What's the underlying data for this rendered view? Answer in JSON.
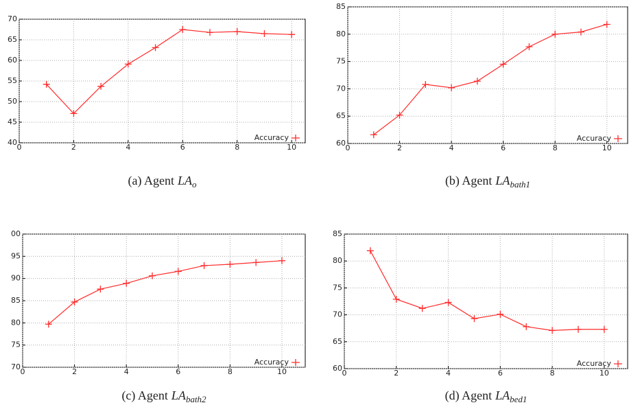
{
  "chart_data": [
    {
      "type": "line",
      "caption": "(a) Agent",
      "caption_math": "LA",
      "caption_sub": "o",
      "x": [
        1,
        2,
        3,
        4,
        5,
        6,
        7,
        8,
        9,
        10
      ],
      "series": [
        {
          "name": "Accuracy",
          "color": "#ff2a2a",
          "values": [
            54.2,
            47.1,
            53.7,
            59.1,
            63.1,
            67.5,
            66.8,
            67.0,
            66.5,
            66.3
          ]
        }
      ],
      "xlim": [
        0,
        10.5
      ],
      "xticks": [
        0,
        2,
        4,
        6,
        8,
        10
      ],
      "ylim": [
        40,
        70
      ],
      "yticks": [
        40,
        45,
        50,
        55,
        60,
        65,
        70
      ],
      "grid": true,
      "legend": "lower right"
    },
    {
      "type": "line",
      "caption": "(b) Agent",
      "caption_math": "LA",
      "caption_sub": "bath1",
      "x": [
        1,
        2,
        3,
        4,
        5,
        6,
        7,
        8,
        9,
        10
      ],
      "series": [
        {
          "name": "Accuracy",
          "color": "#ff2a2a",
          "values": [
            61.6,
            65.2,
            70.8,
            70.2,
            71.4,
            74.5,
            77.7,
            80.0,
            80.4,
            81.8
          ]
        }
      ],
      "xlim": [
        0,
        10.8
      ],
      "xticks": [
        0,
        2,
        4,
        6,
        8,
        10
      ],
      "ylim": [
        60,
        85
      ],
      "yticks": [
        60,
        65,
        70,
        75,
        80,
        85
      ],
      "grid": true,
      "legend": "lower right"
    },
    {
      "type": "line",
      "caption": "(c) Agent",
      "caption_math": "LA",
      "caption_sub": "bath2",
      "x": [
        1,
        2,
        3,
        4,
        5,
        6,
        7,
        8,
        9,
        10
      ],
      "series": [
        {
          "name": "Accuracy",
          "color": "#ff2a2a",
          "values": [
            79.7,
            84.7,
            87.6,
            88.9,
            90.6,
            91.6,
            92.9,
            93.2,
            93.6,
            94.0
          ]
        }
      ],
      "xlim": [
        0,
        10.9
      ],
      "xticks": [
        0,
        2,
        4,
        6,
        8,
        10
      ],
      "ylim": [
        70,
        100
      ],
      "yticks": [
        70,
        75,
        80,
        85,
        90,
        95,
        {
          "value": 100,
          "label": "00"
        }
      ],
      "grid": true,
      "legend": "lower right"
    },
    {
      "type": "line",
      "caption": "(d) Agent",
      "caption_math": "LA",
      "caption_sub": "bed1",
      "x": [
        1,
        2,
        3,
        4,
        5,
        6,
        7,
        8,
        9,
        10
      ],
      "series": [
        {
          "name": "Accuracy",
          "color": "#ff2a2a",
          "values": [
            81.9,
            72.9,
            71.2,
            72.3,
            69.3,
            70.1,
            67.8,
            67.1,
            67.3,
            67.3
          ]
        }
      ],
      "xlim": [
        0,
        10.9
      ],
      "xticks": [
        0,
        2,
        4,
        6,
        8,
        10
      ],
      "ylim": [
        60,
        85
      ],
      "yticks": [
        60,
        65,
        70,
        75,
        80,
        85
      ],
      "grid": true,
      "legend": "lower right"
    }
  ]
}
